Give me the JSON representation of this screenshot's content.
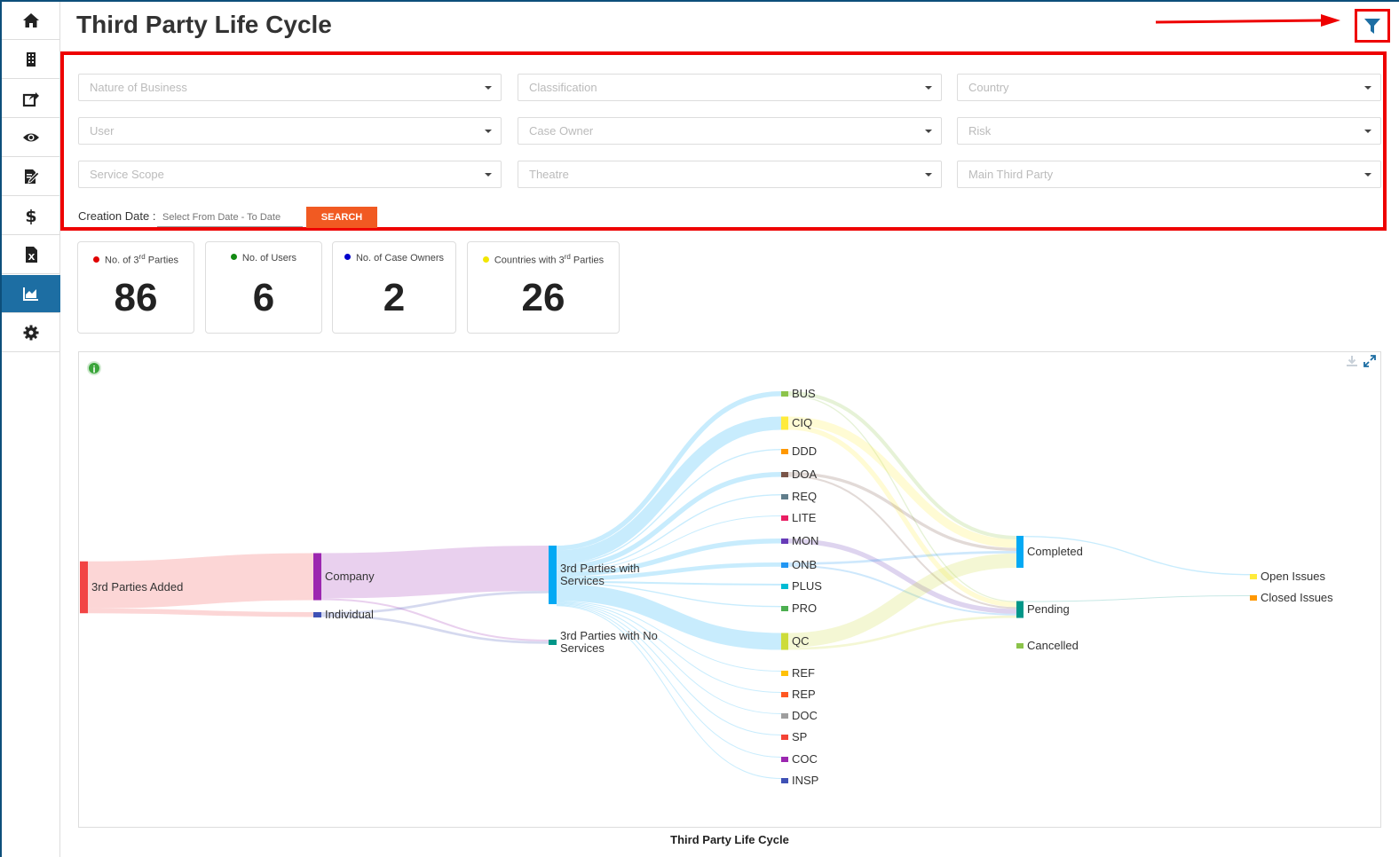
{
  "header": {
    "title": "Third Party Life Cycle"
  },
  "sidebar": {
    "items": [
      {
        "icon": "home-icon",
        "active": false
      },
      {
        "icon": "building-icon",
        "active": false
      },
      {
        "icon": "share-icon",
        "active": false
      },
      {
        "icon": "eye-icon",
        "active": false
      },
      {
        "icon": "edit-doc-icon",
        "active": false
      },
      {
        "icon": "dollar-icon",
        "active": false
      },
      {
        "icon": "excel-icon",
        "active": false
      },
      {
        "icon": "chart-icon",
        "active": true
      },
      {
        "icon": "gear-icon",
        "active": false
      }
    ]
  },
  "filters": {
    "nature_of_business": "Nature of Business",
    "classification": "Classification",
    "country": "Country",
    "user": "User",
    "case_owner": "Case Owner",
    "risk": "Risk",
    "service_scope": "Service Scope",
    "theatre": "Theatre",
    "main_third_party": "Main Third Party",
    "creation_date_label": "Creation Date :",
    "date_placeholder": "Select From Date - To Date",
    "search_label": "SEARCH"
  },
  "kpis": [
    {
      "label_pre": "No. of 3",
      "label_sup": "rd",
      "label_post": " Parties",
      "value": "86",
      "color": "#e00000"
    },
    {
      "label": "No. of Users",
      "value": "6",
      "color": "#138a13"
    },
    {
      "label": "No. of Case Owners",
      "value": "2",
      "color": "#0000cc"
    },
    {
      "label_pre": "Countries with 3",
      "label_sup": "rd",
      "label_post": " Parties",
      "value": "26",
      "color": "#f2e600"
    }
  ],
  "chart_data": {
    "type": "sankey",
    "title": "Third Party Life Cycle",
    "nodes": [
      {
        "name": "3rd Parties Added",
        "color": "#f24444"
      },
      {
        "name": "Company",
        "color": "#9c27b0"
      },
      {
        "name": "Individual",
        "color": "#3f51b5"
      },
      {
        "name": "3rd Parties with Services",
        "color": "#03a9f4"
      },
      {
        "name": "3rd Parties with No Services",
        "color": "#009688"
      },
      {
        "name": "BUS",
        "color": "#8bc34a"
      },
      {
        "name": "CIQ",
        "color": "#ffeb3b"
      },
      {
        "name": "DDD",
        "color": "#ff9800"
      },
      {
        "name": "DOA",
        "color": "#795548"
      },
      {
        "name": "REQ",
        "color": "#607d8b"
      },
      {
        "name": "LITE",
        "color": "#e91e63"
      },
      {
        "name": "MON",
        "color": "#673ab7"
      },
      {
        "name": "ONB",
        "color": "#2196f3"
      },
      {
        "name": "PLUS",
        "color": "#00bcd4"
      },
      {
        "name": "PRO",
        "color": "#4caf50"
      },
      {
        "name": "QC",
        "color": "#cddc39"
      },
      {
        "name": "REF",
        "color": "#ffc107"
      },
      {
        "name": "REP",
        "color": "#ff5722"
      },
      {
        "name": "DOC",
        "color": "#9e9e9e"
      },
      {
        "name": "SP",
        "color": "#f44336"
      },
      {
        "name": "COC",
        "color": "#9c27b0"
      },
      {
        "name": "INSP",
        "color": "#3f51b5"
      },
      {
        "name": "Completed",
        "color": "#03a9f4"
      },
      {
        "name": "Pending",
        "color": "#009688"
      },
      {
        "name": "Cancelled",
        "color": "#8bc34a"
      },
      {
        "name": "Open Issues",
        "color": "#ffeb3b"
      },
      {
        "name": "Closed Issues",
        "color": "#ff9800"
      }
    ],
    "links": [
      {
        "source": "3rd Parties Added",
        "target": "Company",
        "value": 78
      },
      {
        "source": "3rd Parties Added",
        "target": "Individual",
        "value": 8
      },
      {
        "source": "Company",
        "target": "3rd Parties with Services",
        "value": 75
      },
      {
        "source": "Company",
        "target": "3rd Parties with No Services",
        "value": 3
      },
      {
        "source": "Individual",
        "target": "3rd Parties with Services",
        "value": 4
      },
      {
        "source": "Individual",
        "target": "3rd Parties with No Services",
        "value": 4
      },
      {
        "source": "3rd Parties with Services",
        "target": "BUS",
        "value": 8
      },
      {
        "source": "3rd Parties with Services",
        "target": "CIQ",
        "value": 22
      },
      {
        "source": "3rd Parties with Services",
        "target": "DDD",
        "value": 2
      },
      {
        "source": "3rd Parties with Services",
        "target": "DOA",
        "value": 8
      },
      {
        "source": "3rd Parties with Services",
        "target": "REQ",
        "value": 2
      },
      {
        "source": "3rd Parties with Services",
        "target": "LITE",
        "value": 1
      },
      {
        "source": "3rd Parties with Services",
        "target": "MON",
        "value": 8
      },
      {
        "source": "3rd Parties with Services",
        "target": "ONB",
        "value": 7
      },
      {
        "source": "3rd Parties with Services",
        "target": "PLUS",
        "value": 3
      },
      {
        "source": "3rd Parties with Services",
        "target": "PRO",
        "value": 2
      },
      {
        "source": "3rd Parties with Services",
        "target": "QC",
        "value": 28
      },
      {
        "source": "3rd Parties with Services",
        "target": "REF",
        "value": 1
      },
      {
        "source": "3rd Parties with Services",
        "target": "REP",
        "value": 1
      },
      {
        "source": "3rd Parties with Services",
        "target": "DOC",
        "value": 1
      },
      {
        "source": "3rd Parties with Services",
        "target": "SP",
        "value": 1
      },
      {
        "source": "3rd Parties with Services",
        "target": "COC",
        "value": 1
      },
      {
        "source": "3rd Parties with Services",
        "target": "INSP",
        "value": 1
      },
      {
        "source": "BUS",
        "target": "Completed",
        "value": 6
      },
      {
        "source": "BUS",
        "target": "Pending",
        "value": 2
      },
      {
        "source": "CIQ",
        "target": "Completed",
        "value": 14
      },
      {
        "source": "CIQ",
        "target": "Pending",
        "value": 8
      },
      {
        "source": "DOA",
        "target": "Completed",
        "value": 5
      },
      {
        "source": "DOA",
        "target": "Pending",
        "value": 3
      },
      {
        "source": "MON",
        "target": "Pending",
        "value": 8
      },
      {
        "source": "ONB",
        "target": "Completed",
        "value": 4
      },
      {
        "source": "ONB",
        "target": "Pending",
        "value": 3
      },
      {
        "source": "QC",
        "target": "Completed",
        "value": 24
      },
      {
        "source": "QC",
        "target": "Pending",
        "value": 4
      },
      {
        "source": "Completed",
        "target": "Open Issues",
        "value": 2
      },
      {
        "source": "Pending",
        "target": "Closed Issues",
        "value": 1
      }
    ]
  }
}
